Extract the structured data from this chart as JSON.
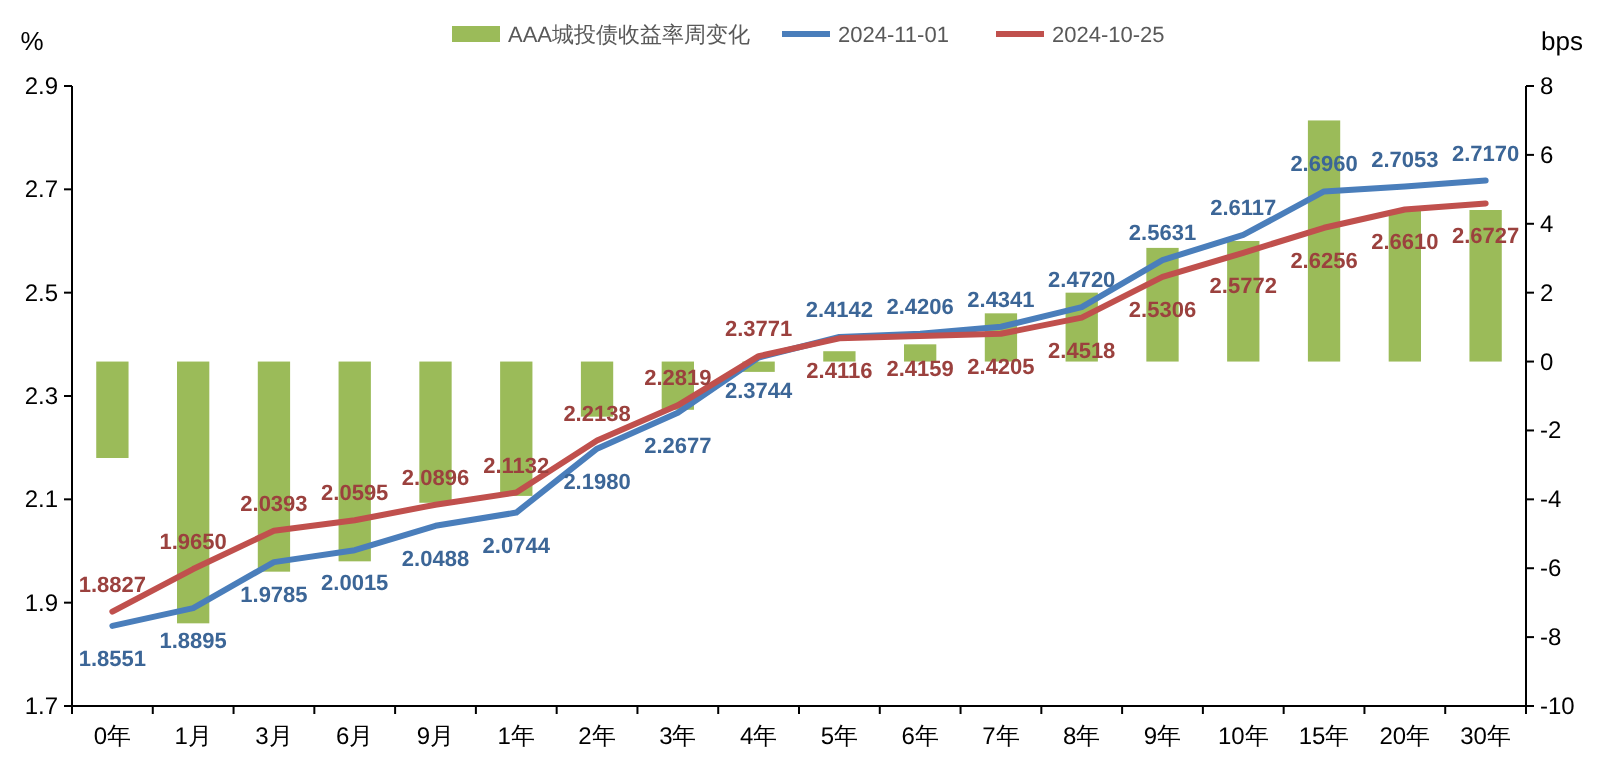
{
  "chart_data": {
    "type": "line",
    "categories": [
      "0年",
      "1月",
      "3月",
      "6月",
      "9月",
      "1年",
      "2年",
      "3年",
      "4年",
      "5年",
      "6年",
      "7年",
      "8年",
      "9年",
      "10年",
      "15年",
      "20年",
      "30年"
    ],
    "series": [
      {
        "name": "AAA城投债收益率周变化",
        "type": "bar",
        "axis": "y2",
        "color": "#9bbb59",
        "values": [
          -2.8,
          -7.6,
          -6.1,
          -5.8,
          -4.1,
          -3.9,
          -1.6,
          -1.4,
          -0.3,
          0.3,
          0.5,
          1.4,
          2.0,
          3.3,
          3.5,
          7.0,
          4.4,
          4.4
        ]
      },
      {
        "name": "2024-11-01",
        "color": "#4a7ebb",
        "values": [
          1.8551,
          1.8895,
          1.9785,
          2.0015,
          2.0488,
          2.0744,
          2.198,
          2.2677,
          2.3744,
          2.4142,
          2.4206,
          2.4341,
          2.472,
          2.5631,
          2.6117,
          2.696,
          2.7053,
          2.717
        ],
        "value_labels": [
          "1.8551",
          "1.8895",
          "1.9785",
          "2.0015",
          "2.0488",
          "2.0744",
          "2.1980",
          "2.2677",
          "2.3744",
          "2.4142",
          "2.4206",
          "2.4341",
          "2.4720",
          "2.5631",
          "2.6117",
          "2.6960",
          "2.7053",
          "2.7170"
        ]
      },
      {
        "name": "2024-10-25",
        "color": "#c0504d",
        "values": [
          1.8827,
          1.965,
          2.0393,
          2.0595,
          2.0896,
          2.1132,
          2.2138,
          2.2819,
          2.3771,
          2.4116,
          2.4159,
          2.4205,
          2.4518,
          2.5306,
          2.5772,
          2.6256,
          2.661,
          2.6727
        ],
        "value_labels": [
          "1.8827",
          "1.9650",
          "2.0393",
          "2.0595",
          "2.0896",
          "2.1132",
          "2.2138",
          "2.2819",
          "2.3771",
          "2.4116",
          "2.4159",
          "2.4205",
          "2.4518",
          "2.5306",
          "2.5772",
          "2.6256",
          "2.6610",
          "2.6727"
        ]
      }
    ],
    "ylabel": "%",
    "y2label": "bps",
    "ylim": [
      1.7,
      2.9
    ],
    "yticks": [
      1.7,
      1.9,
      2.1,
      2.3,
      2.5,
      2.7,
      2.9
    ],
    "y2lim": [
      -10,
      8
    ],
    "y2ticks": [
      -10,
      -8,
      -6,
      -4,
      -2,
      0,
      2,
      4,
      6,
      8
    ],
    "legend": "top",
    "grid": false
  }
}
